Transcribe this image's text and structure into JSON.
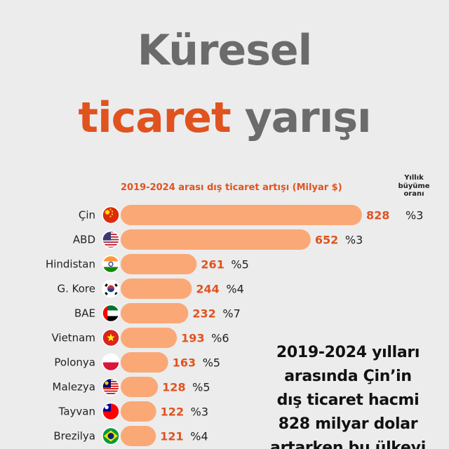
{
  "title": {
    "line1": "Küresel",
    "line2_accent": "ticaret",
    "line2_rest": "yarışı"
  },
  "growth_header": [
    "Yıllık",
    "büyüme",
    "oranı"
  ],
  "note_lines": [
    "2019-2024 yılları",
    "arasında Çin’in",
    "dış ticaret hacmi",
    "828 milyar dolar",
    "artarken bu ülkeyi"
  ],
  "colors": {
    "bar": "#fba877",
    "value": "#e0531f",
    "title_gray": "#6b6b6b",
    "background": "#ececec"
  },
  "chart_data": {
    "type": "bar",
    "orientation": "horizontal",
    "title": "2019-2024 arası dış ticaret artışı  (Milyar $)",
    "categories": [
      "Çin",
      "ABD",
      "Hindistan",
      "G. Kore",
      "BAE",
      "Vietnam",
      "Polonya",
      "Malezya",
      "Tayvan",
      "Brezilya"
    ],
    "values": [
      828,
      652,
      261,
      244,
      232,
      193,
      163,
      128,
      122,
      121
    ],
    "value_labels": [
      "828",
      "652",
      "261",
      "244",
      "232",
      "193",
      "163",
      "128",
      "122",
      "121"
    ],
    "growth": [
      "%3",
      "%3",
      "%5",
      "%4",
      "%7",
      "%6",
      "%5",
      "%5",
      "%3",
      "%4"
    ],
    "flags": [
      "china-flag-icon",
      "usa-flag-icon",
      "india-flag-icon",
      "south-korea-flag-icon",
      "uae-flag-icon",
      "vietnam-flag-icon",
      "poland-flag-icon",
      "malaysia-flag-icon",
      "taiwan-flag-icon",
      "brazil-flag-icon"
    ],
    "xlim": [
      0,
      828
    ],
    "grid": false,
    "legend": "none"
  }
}
